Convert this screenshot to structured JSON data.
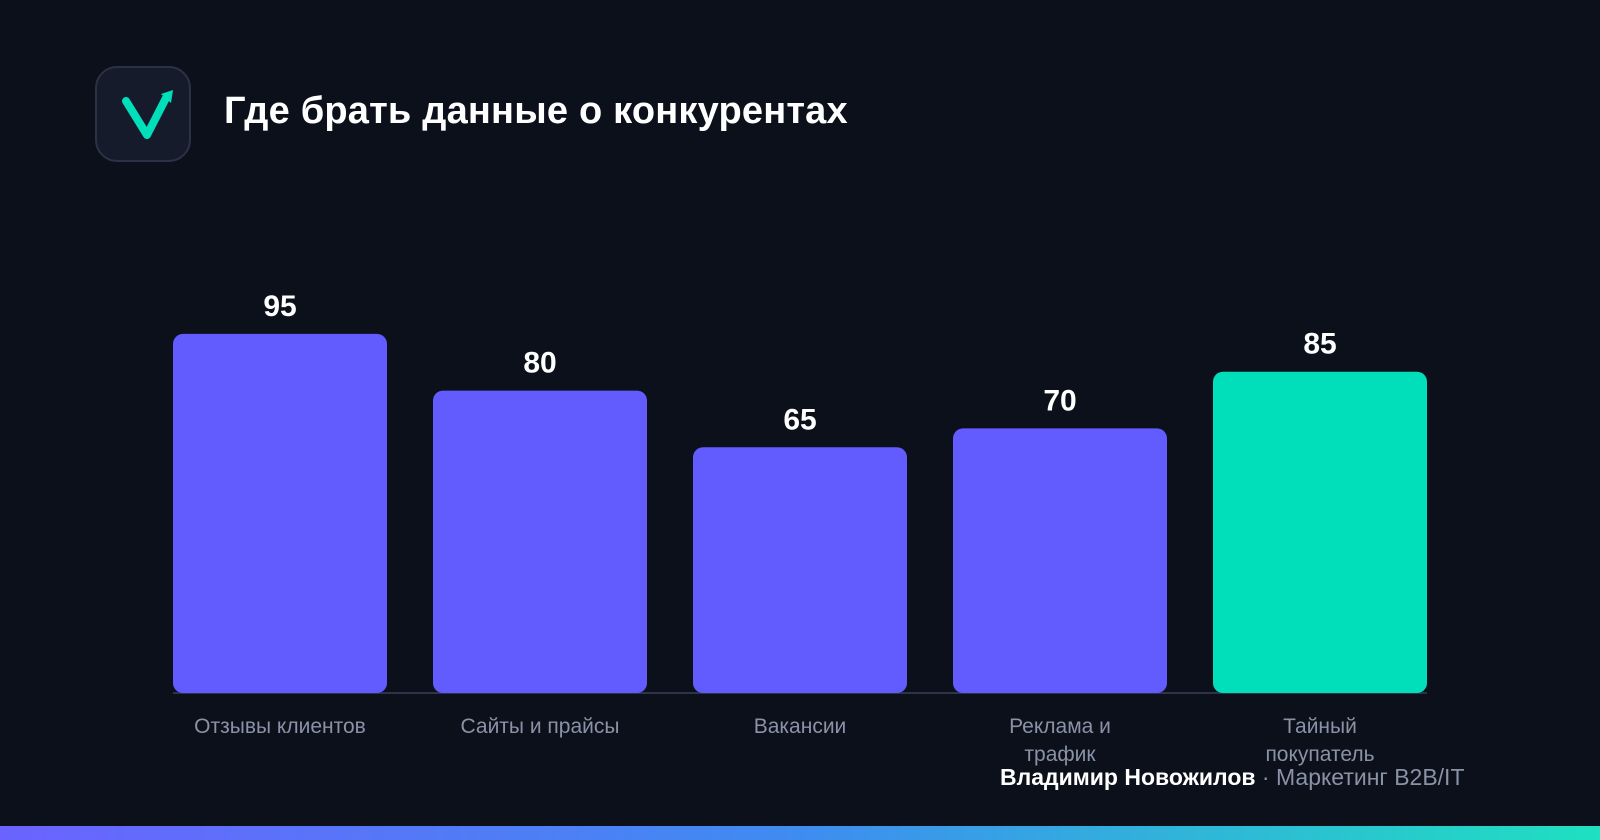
{
  "header": {
    "logo_icon": "checkmark-arrow-icon",
    "title": "Где брать данные о конкурентах"
  },
  "chart_data": {
    "type": "bar",
    "title": "Где брать данные о конкурентах",
    "categories": [
      "Отзывы клиентов",
      "Сайты и прайсы",
      "Вакансии",
      "Реклама и трафик",
      "Тайный покупатель"
    ],
    "category_lines": [
      [
        "Отзывы клиентов"
      ],
      [
        "Сайты и прайсы"
      ],
      [
        "Вакансии"
      ],
      [
        "Реклама и",
        "трафик"
      ],
      [
        "Тайный",
        "покупатель"
      ]
    ],
    "values": [
      95,
      80,
      65,
      70,
      85
    ],
    "ylim": [
      0,
      100
    ],
    "grid": false,
    "colors": [
      "#625cff",
      "#625cff",
      "#625cff",
      "#625cff",
      "#00dfba"
    ],
    "highlight_index": 4
  },
  "footer": {
    "author": "Владимир Новожилов",
    "separator": "·",
    "tagline": "Маркетинг B2B/IT"
  },
  "colors": {
    "background": "#0b101b",
    "bar": "#625cff",
    "highlight": "#00dfba",
    "axis": "#2d3348",
    "label": "#8a92a6"
  }
}
